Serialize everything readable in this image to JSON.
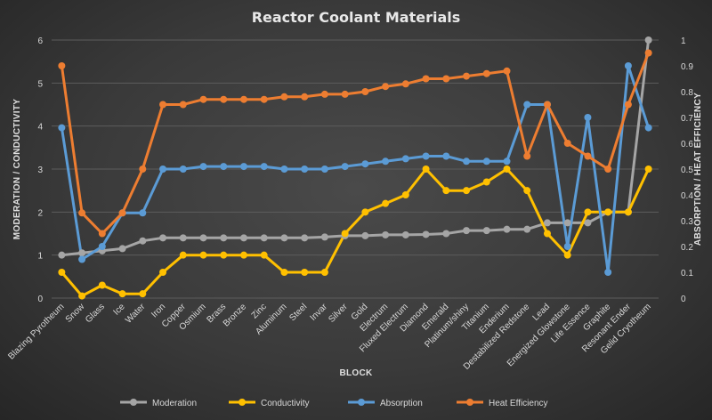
{
  "chart_data": {
    "type": "line",
    "title": "Reactor Coolant Materials",
    "xlabel": "BLOCK",
    "ylabel_left": "MODERATION / CONDUCTIVITY",
    "ylabel_right": "ABSORPTION / HEAT EFFICIENCY",
    "ylim_left": [
      0,
      6
    ],
    "ylim_right": [
      0,
      1
    ],
    "yticks_left": [
      "0",
      "1",
      "2",
      "3",
      "4",
      "5",
      "6"
    ],
    "yticks_right": [
      "0",
      "0.1",
      "0.2",
      "0.3",
      "0.4",
      "0.5",
      "0.6",
      "0.7",
      "0.8",
      "0.9",
      "1"
    ],
    "grid": true,
    "legend_position": "bottom",
    "categories": [
      "Blazing Pyrotheum",
      "Snow",
      "Glass",
      "Ice",
      "Water",
      "Iron",
      "Copper",
      "Osmium",
      "Brass",
      "Bronze",
      "Zinc",
      "Aluminum",
      "Steel",
      "Invar",
      "Silver",
      "Gold",
      "Electrum",
      "Fluxed Electrum",
      "Diamond",
      "Emerald",
      "Platinum/shiny",
      "Titanium",
      "Enderium",
      "Destabilized Redstone",
      "Lead",
      "Energized Glowstone",
      "Life Essence",
      "Graphite",
      "Resonant Ender",
      "Gelid Cryotheum"
    ],
    "series": [
      {
        "name": "Moderation",
        "axis": "left",
        "color": "#a5a5a5",
        "values": [
          1.0,
          1.05,
          1.1,
          1.15,
          1.33,
          1.4,
          1.4,
          1.4,
          1.4,
          1.4,
          1.4,
          1.4,
          1.4,
          1.42,
          1.45,
          1.45,
          1.47,
          1.47,
          1.48,
          1.5,
          1.57,
          1.57,
          1.6,
          1.6,
          1.75,
          1.75,
          1.75,
          2.0,
          2.0,
          6.0
        ]
      },
      {
        "name": "Conductivity",
        "axis": "left",
        "color": "#ffc000",
        "values": [
          0.6,
          0.05,
          0.3,
          0.1,
          0.1,
          0.6,
          1.0,
          1.0,
          1.0,
          1.0,
          1.0,
          0.6,
          0.6,
          0.6,
          1.5,
          2.0,
          2.2,
          2.4,
          3.0,
          2.5,
          2.5,
          2.7,
          3.0,
          2.5,
          1.5,
          1.0,
          2.0,
          2.0,
          2.0,
          3.0
        ]
      },
      {
        "name": "Absorption",
        "axis": "right",
        "color": "#5b9bd5",
        "values": [
          0.66,
          0.15,
          0.2,
          0.33,
          0.33,
          0.5,
          0.5,
          0.51,
          0.51,
          0.51,
          0.51,
          0.5,
          0.5,
          0.5,
          0.51,
          0.52,
          0.53,
          0.54,
          0.55,
          0.55,
          0.53,
          0.53,
          0.53,
          0.75,
          0.75,
          0.2,
          0.7,
          0.1,
          0.9,
          0.66
        ]
      },
      {
        "name": "Heat Efficiency",
        "axis": "right",
        "color": "#ed7d31",
        "values": [
          0.9,
          0.33,
          0.25,
          0.33,
          0.5,
          0.75,
          0.75,
          0.77,
          0.77,
          0.77,
          0.77,
          0.78,
          0.78,
          0.79,
          0.79,
          0.8,
          0.82,
          0.83,
          0.85,
          0.85,
          0.86,
          0.87,
          0.88,
          0.55,
          0.75,
          0.6,
          0.55,
          0.5,
          0.75,
          0.95
        ]
      }
    ]
  }
}
